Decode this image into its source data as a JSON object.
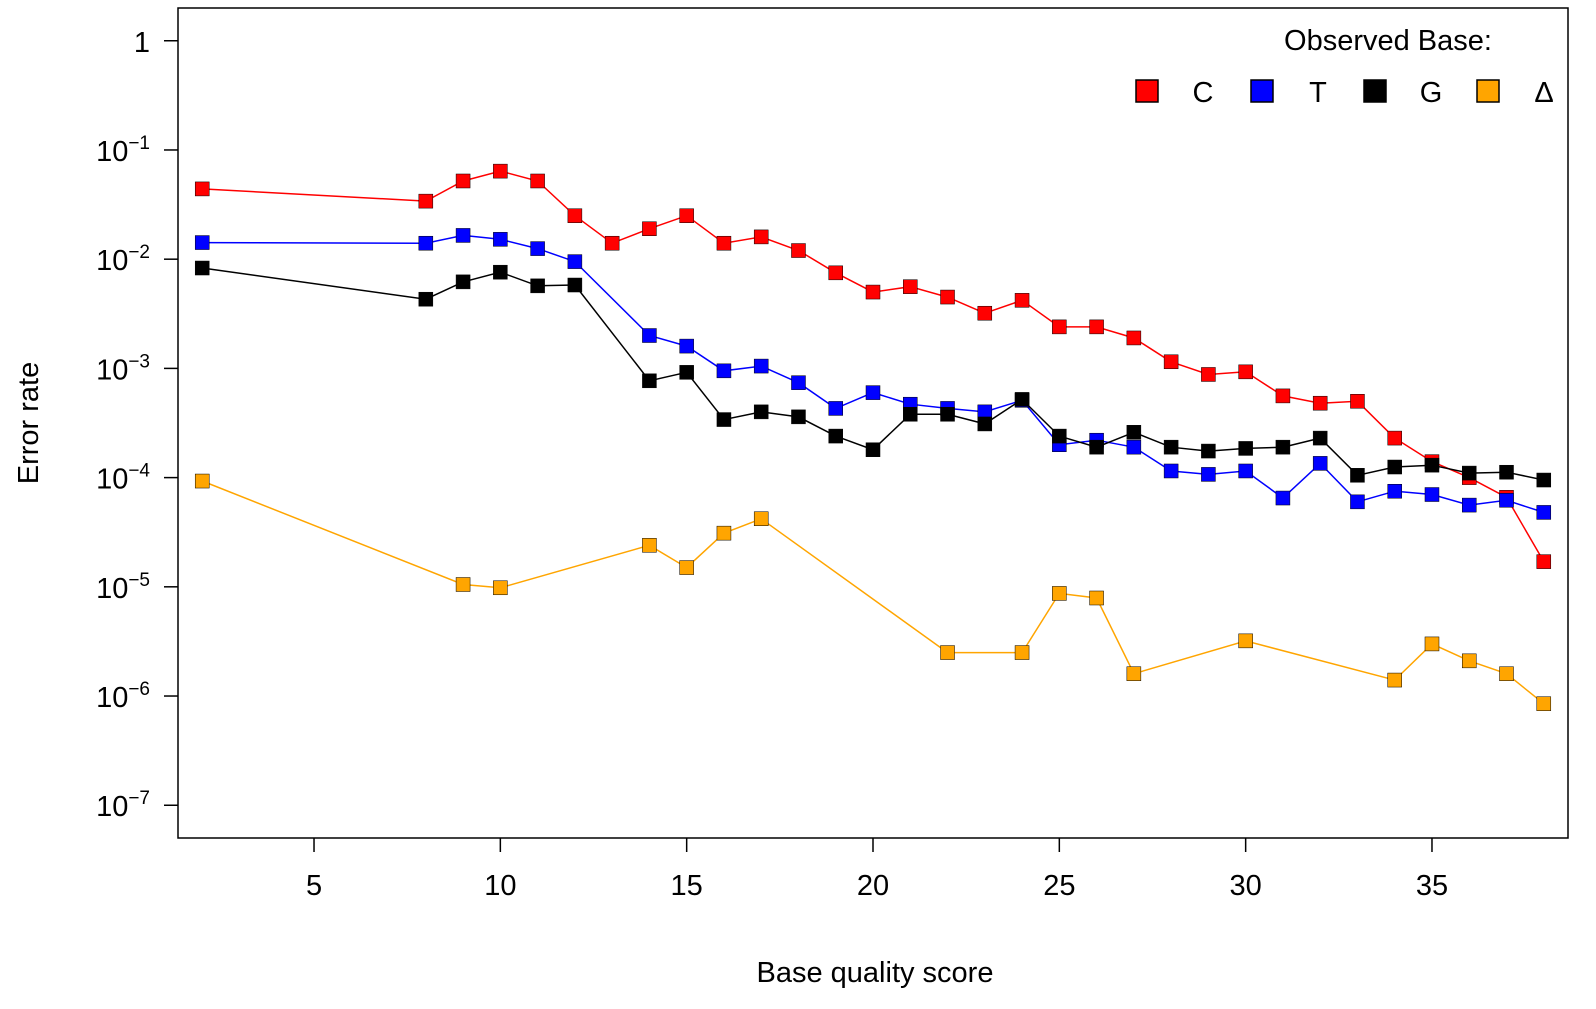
{
  "chart_data": {
    "type": "line",
    "xlabel": "Base quality score",
    "ylabel": "Error rate",
    "log_y": true,
    "xlim": [
      1.35,
      38.65
    ],
    "ylim_log10": [
      -7.3,
      0.3
    ],
    "x_ticks": [
      5,
      10,
      15,
      20,
      25,
      30,
      35
    ],
    "y_ticks": [
      {
        "base": "1",
        "exp": ""
      },
      {
        "base": "10",
        "exp": "−1"
      },
      {
        "base": "10",
        "exp": "−2"
      },
      {
        "base": "10",
        "exp": "−3"
      },
      {
        "base": "10",
        "exp": "−4"
      },
      {
        "base": "10",
        "exp": "−5"
      },
      {
        "base": "10",
        "exp": "−6"
      },
      {
        "base": "10",
        "exp": "−7"
      }
    ],
    "y_tick_values": [
      1,
      0.1,
      0.01,
      0.001,
      0.0001,
      1e-05,
      1e-06,
      1e-07
    ],
    "legend": {
      "title": "Observed Base:",
      "position": "top-right"
    },
    "marker": "square",
    "series": [
      {
        "name": "C",
        "color": "#ff0000",
        "points": [
          [
            2,
            0.044
          ],
          [
            8,
            0.034
          ],
          [
            9,
            0.052
          ],
          [
            10,
            0.064
          ],
          [
            11,
            0.052
          ],
          [
            12,
            0.025
          ],
          [
            13,
            0.014
          ],
          [
            14,
            0.019
          ],
          [
            15,
            0.025
          ],
          [
            16,
            0.014
          ],
          [
            17,
            0.016
          ],
          [
            18,
            0.012
          ],
          [
            19,
            0.0075
          ],
          [
            20,
            0.005
          ],
          [
            21,
            0.0056
          ],
          [
            22,
            0.0045
          ],
          [
            23,
            0.0032
          ],
          [
            24,
            0.0042
          ],
          [
            25,
            0.0024
          ],
          [
            26,
            0.0024
          ],
          [
            27,
            0.0019
          ],
          [
            28,
            0.00115
          ],
          [
            29,
            0.00088
          ],
          [
            30,
            0.00093
          ],
          [
            31,
            0.00056
          ],
          [
            32,
            0.00048
          ],
          [
            33,
            0.0005
          ],
          [
            34,
            0.00023
          ],
          [
            35,
            0.00014
          ],
          [
            36,
            0.0001
          ],
          [
            37,
            6.6e-05
          ],
          [
            38,
            1.7e-05
          ]
        ]
      },
      {
        "name": "T",
        "color": "#0000ff",
        "points": [
          [
            2,
            0.0142
          ],
          [
            8,
            0.014
          ],
          [
            9,
            0.0165
          ],
          [
            10,
            0.0152
          ],
          [
            11,
            0.0125
          ],
          [
            12,
            0.0095
          ],
          [
            14,
            0.002
          ],
          [
            15,
            0.0016
          ],
          [
            16,
            0.00095
          ],
          [
            17,
            0.00105
          ],
          [
            18,
            0.00074
          ],
          [
            19,
            0.00043
          ],
          [
            20,
            0.0006
          ],
          [
            21,
            0.00047
          ],
          [
            22,
            0.00043
          ],
          [
            23,
            0.0004
          ],
          [
            24,
            0.00051
          ],
          [
            25,
            0.0002
          ],
          [
            26,
            0.00022
          ],
          [
            27,
            0.00019
          ],
          [
            28,
            0.000115
          ],
          [
            29,
            0.000107
          ],
          [
            30,
            0.000115
          ],
          [
            31,
            6.5e-05
          ],
          [
            32,
            0.000135
          ],
          [
            33,
            6e-05
          ],
          [
            34,
            7.5e-05
          ],
          [
            35,
            7e-05
          ],
          [
            36,
            5.6e-05
          ],
          [
            37,
            6.2e-05
          ],
          [
            38,
            4.8e-05
          ]
        ]
      },
      {
        "name": "G",
        "color": "#000000",
        "points": [
          [
            2,
            0.0083
          ],
          [
            8,
            0.0043
          ],
          [
            9,
            0.0062
          ],
          [
            10,
            0.0076
          ],
          [
            11,
            0.0057
          ],
          [
            12,
            0.0058
          ],
          [
            14,
            0.00077
          ],
          [
            15,
            0.00092
          ],
          [
            16,
            0.00034
          ],
          [
            17,
            0.0004
          ],
          [
            18,
            0.00036
          ],
          [
            19,
            0.00024
          ],
          [
            20,
            0.00018
          ],
          [
            21,
            0.00038
          ],
          [
            22,
            0.00038
          ],
          [
            23,
            0.00031
          ],
          [
            24,
            0.00052
          ],
          [
            25,
            0.00024
          ],
          [
            26,
            0.00019
          ],
          [
            27,
            0.00026
          ],
          [
            28,
            0.00019
          ],
          [
            29,
            0.000175
          ],
          [
            30,
            0.000185
          ],
          [
            31,
            0.00019
          ],
          [
            32,
            0.00023
          ],
          [
            33,
            0.000105
          ],
          [
            34,
            0.000125
          ],
          [
            35,
            0.00013
          ],
          [
            36,
            0.00011
          ],
          [
            37,
            0.000112
          ],
          [
            38,
            9.5e-05
          ]
        ]
      },
      {
        "name": "Δ",
        "color": "#ffa500",
        "points": [
          [
            2,
            9.3e-05
          ],
          [
            9,
            1.05e-05
          ],
          [
            10,
            9.8e-06
          ],
          [
            14,
            2.4e-05
          ],
          [
            15,
            1.5e-05
          ],
          [
            16,
            3.1e-05
          ],
          [
            17,
            4.2e-05
          ],
          [
            22,
            2.5e-06
          ],
          [
            24,
            2.5e-06
          ],
          [
            25,
            8.7e-06
          ],
          [
            26,
            7.9e-06
          ],
          [
            27,
            1.6e-06
          ],
          [
            30,
            3.2e-06
          ],
          [
            34,
            1.4e-06
          ],
          [
            35,
            3e-06
          ],
          [
            36,
            2.1e-06
          ],
          [
            37,
            1.6e-06
          ],
          [
            38,
            8.5e-07
          ]
        ]
      }
    ]
  }
}
